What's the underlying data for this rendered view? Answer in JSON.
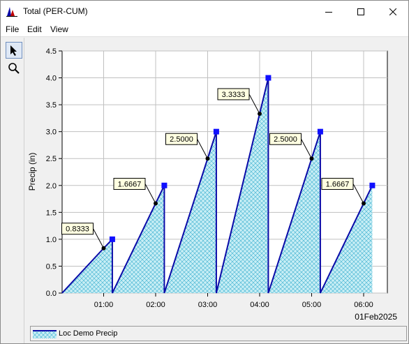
{
  "window": {
    "title": "Total (PER-CUM)"
  },
  "menu": {
    "file": "File",
    "edit": "Edit",
    "view": "View"
  },
  "toolbar": {
    "items": [
      "pointer-icon",
      "zoom-icon"
    ]
  },
  "colors": {
    "series_line": "#0a0aa8",
    "fill_hatch": "#00a0d0",
    "marker": "#1010ff",
    "label_bg": "#ffffe1"
  },
  "chart_data": {
    "type": "area",
    "ylabel": "Precip (in)",
    "xlabel": "01Feb2025",
    "ylim": [
      0,
      4.5
    ],
    "yticks": [
      "0.0",
      "0.5",
      "1.0",
      "1.5",
      "2.0",
      "2.5",
      "3.0",
      "3.5",
      "4.0",
      "4.5"
    ],
    "xtick_labels": [
      "01:00",
      "02:00",
      "03:00",
      "04:00",
      "05:00",
      "06:00"
    ],
    "grid": true,
    "legend_position": "bottom",
    "series": [
      {
        "name": "Loc Demo Precip",
        "points": [
          {
            "x": "00:12",
            "y": 0
          },
          {
            "x": "01:00",
            "y": 0.8333
          },
          {
            "x": "01:10",
            "y": 1.0
          },
          {
            "x": "01:10",
            "y": 0
          },
          {
            "x": "02:00",
            "y": 1.6667
          },
          {
            "x": "02:10",
            "y": 2.0
          },
          {
            "x": "02:10",
            "y": 0
          },
          {
            "x": "03:00",
            "y": 2.5
          },
          {
            "x": "03:10",
            "y": 3.0
          },
          {
            "x": "03:10",
            "y": 0
          },
          {
            "x": "04:00",
            "y": 3.3333
          },
          {
            "x": "04:10",
            "y": 4.0
          },
          {
            "x": "04:10",
            "y": 0
          },
          {
            "x": "05:00",
            "y": 2.5
          },
          {
            "x": "05:10",
            "y": 3.0
          },
          {
            "x": "05:10",
            "y": 0
          },
          {
            "x": "06:00",
            "y": 1.6667
          },
          {
            "x": "06:10",
            "y": 2.0
          }
        ]
      }
    ],
    "annotations": [
      {
        "text": "0.8333",
        "x": "01:00",
        "y": 0.8333
      },
      {
        "text": "1.6667",
        "x": "02:00",
        "y": 1.6667
      },
      {
        "text": "2.5000",
        "x": "03:00",
        "y": 2.5
      },
      {
        "text": "3.3333",
        "x": "04:00",
        "y": 3.3333
      },
      {
        "text": "2.5000",
        "x": "05:00",
        "y": 2.5
      },
      {
        "text": "1.6667",
        "x": "06:00",
        "y": 1.6667
      }
    ]
  }
}
